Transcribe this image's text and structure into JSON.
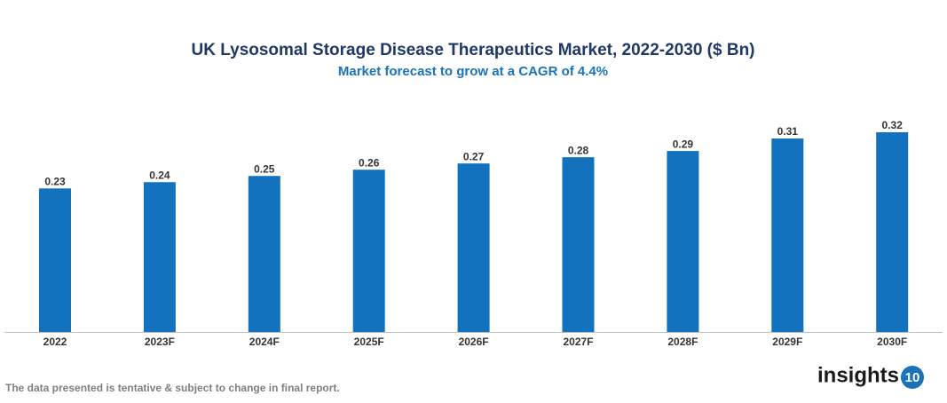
{
  "chart_data": {
    "type": "bar",
    "title": "UK Lysosomal Storage Disease Therapeutics Market, 2022-2030 ($ Bn)",
    "subtitle": "Market forecast to grow at a CAGR of 4.4%",
    "categories": [
      "2022",
      "2023F",
      "2024F",
      "2025F",
      "2026F",
      "2027F",
      "2028F",
      "2029F",
      "2030F"
    ],
    "values": [
      0.23,
      0.24,
      0.25,
      0.26,
      0.27,
      0.28,
      0.29,
      0.31,
      0.32
    ],
    "color": "#1272be",
    "note": "The data presented is tentative & subject to change in final report.",
    "logo_text": "insights",
    "logo_number": "10"
  }
}
